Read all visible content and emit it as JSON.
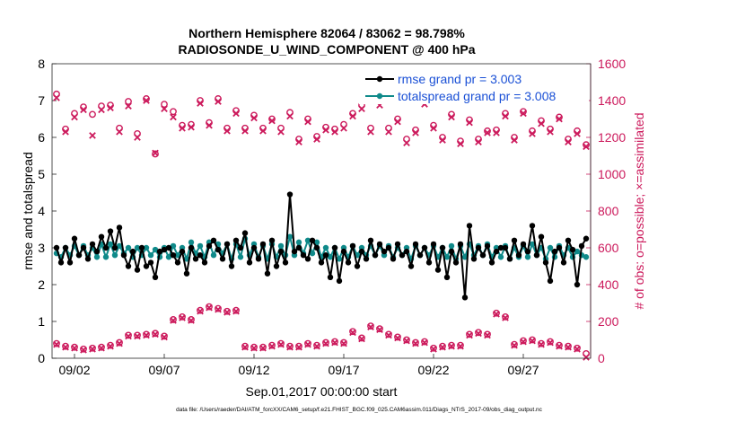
{
  "chart_data": {
    "type": "line",
    "title": "Northern Hemisphere 82064 / 83062 = 98.798%",
    "subtitle": "RADIOSONDE_U_WIND_COMPONENT @ 400 hPa",
    "xlabel": "Sep.01,2017 00:00:00 start",
    "ylabel": "rmse and totalspread",
    "ylabel_right": "# of obs: o=possible; ×=assimilated",
    "footnote": "data file: /Users/raeder/DAI/ATM_forcXX/CAM6_setup/f.e21.FHIST_BGC.f09_025.CAM6assim.011/Diags_NTrS_2017-09/obs_diag_output.nc",
    "x_ticks": [
      2,
      7,
      12,
      17,
      22,
      27
    ],
    "x_tick_labels": [
      "09/02",
      "09/07",
      "09/12",
      "09/17",
      "09/22",
      "09/27"
    ],
    "xlim": [
      0.75,
      30.75
    ],
    "ylim": [
      0,
      8
    ],
    "y_ticks": [
      0,
      1,
      2,
      3,
      4,
      5,
      6,
      7,
      8
    ],
    "ylim_right": [
      0,
      1600
    ],
    "y_ticks_right": [
      0,
      200,
      400,
      600,
      800,
      1000,
      1200,
      1400,
      1600
    ],
    "colors": {
      "rmse": "#000000",
      "spread": "#0f8a8a",
      "obs": "#cc1a5c",
      "legend_text": "#1a50d6"
    },
    "legend": [
      {
        "name": "rmse grand pr = 3.003"
      },
      {
        "name": "totalspread grand pr = 3.008"
      }
    ],
    "x": [
      1.0,
      1.25,
      1.5,
      1.75,
      2.0,
      2.25,
      2.5,
      2.75,
      3.0,
      3.25,
      3.5,
      3.75,
      4.0,
      4.25,
      4.5,
      4.75,
      5.0,
      5.25,
      5.5,
      5.75,
      6.0,
      6.25,
      6.5,
      6.75,
      7.0,
      7.25,
      7.5,
      7.75,
      8.0,
      8.25,
      8.5,
      8.75,
      9.0,
      9.25,
      9.5,
      9.75,
      10.0,
      10.25,
      10.5,
      10.75,
      11.0,
      11.25,
      11.5,
      11.75,
      12.0,
      12.25,
      12.5,
      12.75,
      13.0,
      13.25,
      13.5,
      13.75,
      14.0,
      14.25,
      14.5,
      14.75,
      15.0,
      15.25,
      15.5,
      15.75,
      16.0,
      16.25,
      16.5,
      16.75,
      17.0,
      17.25,
      17.5,
      17.75,
      18.0,
      18.25,
      18.5,
      18.75,
      19.0,
      19.25,
      19.5,
      19.75,
      20.0,
      20.25,
      20.5,
      20.75,
      21.0,
      21.25,
      21.5,
      21.75,
      22.0,
      22.25,
      22.5,
      22.75,
      23.0,
      23.25,
      23.5,
      23.75,
      24.0,
      24.25,
      24.5,
      24.75,
      25.0,
      25.25,
      25.5,
      25.75,
      26.0,
      26.25,
      26.5,
      26.75,
      27.0,
      27.25,
      27.5,
      27.75,
      28.0,
      28.25,
      28.5,
      28.75,
      29.0,
      29.25,
      29.5,
      29.75,
      30.0,
      30.25,
      30.5
    ],
    "series": [
      {
        "name": "rmse",
        "values": [
          3.0,
          2.6,
          3.0,
          2.6,
          3.25,
          2.8,
          3.0,
          2.7,
          3.1,
          2.9,
          3.3,
          3.0,
          3.45,
          3.0,
          3.55,
          2.8,
          2.5,
          2.9,
          2.4,
          3.0,
          2.5,
          2.6,
          2.2,
          2.9,
          2.95,
          3.0,
          2.8,
          2.6,
          2.9,
          2.3,
          3.0,
          2.7,
          2.8,
          2.6,
          3.05,
          3.2,
          2.95,
          2.7,
          3.1,
          2.5,
          3.2,
          3.0,
          3.4,
          2.6,
          3.0,
          2.7,
          3.1,
          2.3,
          3.2,
          2.5,
          2.9,
          2.6,
          4.45,
          2.9,
          3.0,
          2.8,
          2.7,
          3.2,
          3.0,
          2.6,
          2.8,
          2.2,
          3.0,
          2.1,
          2.9,
          2.6,
          3.05,
          2.5,
          2.9,
          2.7,
          3.2,
          2.8,
          3.1,
          2.9,
          3.0,
          2.7,
          3.1,
          2.8,
          2.9,
          2.5,
          3.1,
          2.8,
          3.0,
          2.6,
          3.1,
          2.4,
          3.0,
          2.2,
          2.9,
          2.6,
          3.1,
          1.65,
          3.6,
          2.7,
          3.0,
          2.8,
          3.05,
          2.6,
          2.9,
          3.0,
          3.0,
          2.7,
          3.2,
          2.8,
          3.1,
          2.9,
          3.6,
          2.8,
          3.3,
          2.6,
          2.1,
          2.9,
          3.0,
          2.6,
          3.2,
          2.95,
          2.0,
          3.05,
          3.25
        ]
      },
      {
        "name": "totalspread",
        "values": [
          2.85,
          2.75,
          3.0,
          2.8,
          3.05,
          2.8,
          3.05,
          2.8,
          3.0,
          2.75,
          3.1,
          2.75,
          3.1,
          2.8,
          3.05,
          2.85,
          3.0,
          2.75,
          3.0,
          2.8,
          3.0,
          2.8,
          2.95,
          2.75,
          3.0,
          2.75,
          3.05,
          2.8,
          3.0,
          2.7,
          3.15,
          2.85,
          3.05,
          2.75,
          3.15,
          2.8,
          3.1,
          2.85,
          3.1,
          2.7,
          3.1,
          2.75,
          3.25,
          2.8,
          3.1,
          2.75,
          3.05,
          2.7,
          3.1,
          2.75,
          3.05,
          2.8,
          3.3,
          2.8,
          3.15,
          2.85,
          3.2,
          2.85,
          3.15,
          2.75,
          3.0,
          2.75,
          3.0,
          2.7,
          3.0,
          2.75,
          3.05,
          2.8,
          3.0,
          2.8,
          3.05,
          2.8,
          3.05,
          2.8,
          3.05,
          2.75,
          3.0,
          2.8,
          3.0,
          2.7,
          3.05,
          2.8,
          3.0,
          2.8,
          3.05,
          2.75,
          3.0,
          2.75,
          3.05,
          2.7,
          3.05,
          2.75,
          3.1,
          2.8,
          3.05,
          2.8,
          3.1,
          2.75,
          3.0,
          2.75,
          3.05,
          2.7,
          3.0,
          2.75,
          3.05,
          2.75,
          3.1,
          2.8,
          3.0,
          2.7,
          3.0,
          2.75,
          3.05,
          2.8,
          3.0,
          2.75,
          2.9,
          2.8,
          2.75
        ]
      }
    ],
    "obs_x": [
      1.0,
      1.5,
      2.0,
      2.5,
      3.0,
      3.5,
      4.0,
      4.5,
      5.0,
      5.5,
      6.0,
      6.5,
      7.0,
      7.5,
      8.0,
      8.5,
      9.0,
      9.5,
      10.0,
      10.5,
      11.0,
      11.5,
      12.0,
      12.5,
      13.0,
      13.5,
      14.0,
      14.5,
      15.0,
      15.5,
      16.0,
      16.5,
      17.0,
      17.5,
      18.0,
      18.5,
      19.0,
      19.5,
      20.0,
      20.5,
      21.0,
      21.5,
      22.0,
      22.5,
      23.0,
      23.5,
      24.0,
      24.5,
      25.0,
      25.5,
      26.0,
      26.5,
      27.0,
      27.5,
      28.0,
      28.5,
      29.0,
      29.5,
      30.0,
      30.5
    ],
    "obs_possible": [
      1435,
      1245,
      1330,
      1365,
      1325,
      1370,
      1375,
      1250,
      1395,
      1220,
      1410,
      1110,
      1380,
      1340,
      1265,
      1270,
      1400,
      1280,
      1410,
      1250,
      1345,
      1250,
      1320,
      1250,
      1300,
      1250,
      1335,
      1190,
      1300,
      1205,
      1255,
      1245,
      1270,
      1330,
      1375,
      1250,
      1395,
      1250,
      1300,
      1190,
      1240,
      1395,
      1265,
      1200,
      1325,
      1180,
      1295,
      1190,
      1235,
      1240,
      1330,
      1200,
      1340,
      1235,
      1290,
      1245,
      1310,
      1190,
      1235,
      1160
    ],
    "obs_assimilated": [
      1415,
      1230,
      1310,
      1350,
      1210,
      1350,
      1360,
      1230,
      1370,
      1200,
      1400,
      1115,
      1355,
      1310,
      1250,
      1255,
      1385,
      1265,
      1395,
      1235,
      1330,
      1235,
      1305,
      1235,
      1290,
      1230,
      1315,
      1175,
      1285,
      1190,
      1240,
      1230,
      1250,
      1315,
      1355,
      1230,
      1375,
      1230,
      1285,
      1170,
      1225,
      1380,
      1250,
      1185,
      1310,
      1165,
      1280,
      1175,
      1225,
      1225,
      1315,
      1185,
      1330,
      1220,
      1275,
      1230,
      1300,
      1175,
      1220,
      1150
    ],
    "obs2_x": [
      1.0,
      1.5,
      2.0,
      2.5,
      3.0,
      3.5,
      4.0,
      4.5,
      5.0,
      5.5,
      6.0,
      6.5,
      7.0,
      7.5,
      8.0,
      8.5,
      9.0,
      9.5,
      10.0,
      10.5,
      11.0,
      11.5,
      12.0,
      12.5,
      13.0,
      13.5,
      14.0,
      14.5,
      15.0,
      15.5,
      16.0,
      16.5,
      17.0,
      17.5,
      18.0,
      18.5,
      19.0,
      19.5,
      20.0,
      20.5,
      21.0,
      21.5,
      22.0,
      22.5,
      23.0,
      23.5,
      24.0,
      24.5,
      25.0,
      25.5,
      26.0,
      26.5,
      27.0,
      27.5,
      28.0,
      28.5,
      29.0,
      29.5,
      30.0,
      30.5
    ],
    "obs2_possible": [
      80,
      65,
      60,
      50,
      55,
      60,
      70,
      85,
      125,
      125,
      130,
      135,
      120,
      210,
      225,
      210,
      260,
      280,
      270,
      255,
      260,
      65,
      60,
      60,
      70,
      80,
      65,
      65,
      80,
      70,
      85,
      90,
      85,
      145,
      110,
      175,
      160,
      130,
      115,
      100,
      85,
      90,
      55,
      65,
      70,
      70,
      130,
      140,
      130,
      245,
      225,
      75,
      95,
      100,
      80,
      90,
      70,
      65,
      55,
      25
    ],
    "obs2_assimilated": [
      75,
      60,
      55,
      45,
      50,
      55,
      65,
      80,
      120,
      120,
      125,
      130,
      115,
      205,
      220,
      205,
      255,
      275,
      265,
      250,
      255,
      60,
      55,
      55,
      65,
      75,
      60,
      60,
      75,
      65,
      80,
      85,
      80,
      140,
      105,
      170,
      155,
      125,
      110,
      95,
      80,
      85,
      50,
      60,
      65,
      65,
      125,
      135,
      125,
      240,
      220,
      70,
      90,
      95,
      75,
      85,
      65,
      60,
      50,
      5
    ]
  }
}
